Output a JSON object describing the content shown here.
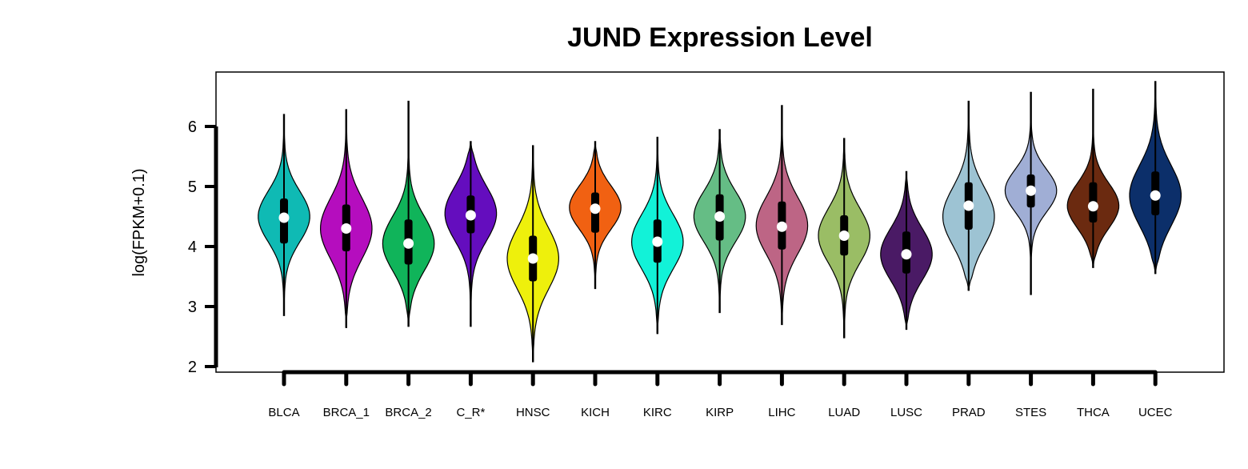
{
  "chart_data": {
    "type": "violin",
    "title": "JUND Expression Level",
    "xlabel": "",
    "ylabel": "log(FPKM+0.1)",
    "ylim": [
      2,
      6.8
    ],
    "yticks": [
      "2",
      "3",
      "4",
      "5",
      "6"
    ],
    "grid": false,
    "legend": "none",
    "categories": [
      "BLCA",
      "BRCA_1",
      "BRCA_2",
      "C_R*",
      "HNSC",
      "KICH",
      "KIRC",
      "KIRP",
      "LIHC",
      "LUAD",
      "LUSC",
      "PRAD",
      "STES",
      "THCA",
      "UCEC"
    ],
    "groups": [
      {
        "name": "BLCA",
        "color": "#0FBAB4",
        "min": 2.85,
        "max": 6.2,
        "q1": 4.05,
        "q3": 4.8,
        "median": 4.48,
        "mode": 4.5,
        "spread": 0.42
      },
      {
        "name": "BRCA_1",
        "color": "#B50DBE",
        "min": 2.65,
        "max": 6.28,
        "q1": 3.92,
        "q3": 4.7,
        "median": 4.3,
        "mode": 4.3,
        "spread": 0.5
      },
      {
        "name": "BRCA_2",
        "color": "#10B45A",
        "min": 2.67,
        "max": 6.42,
        "q1": 3.7,
        "q3": 4.45,
        "median": 4.05,
        "mode": 4.05,
        "spread": 0.45
      },
      {
        "name": "C_R*",
        "color": "#640DBE",
        "min": 2.67,
        "max": 5.75,
        "q1": 4.22,
        "q3": 4.85,
        "median": 4.52,
        "mode": 4.55,
        "spread": 0.45
      },
      {
        "name": "HNSC",
        "color": "#EEF00C",
        "min": 2.08,
        "max": 5.68,
        "q1": 3.42,
        "q3": 4.18,
        "median": 3.8,
        "mode": 3.8,
        "spread": 0.5
      },
      {
        "name": "KICH",
        "color": "#F16112",
        "min": 3.3,
        "max": 5.75,
        "q1": 4.23,
        "q3": 4.9,
        "median": 4.63,
        "mode": 4.65,
        "spread": 0.36
      },
      {
        "name": "KIRC",
        "color": "#12F2D8",
        "min": 2.55,
        "max": 5.82,
        "q1": 3.73,
        "q3": 4.45,
        "median": 4.08,
        "mode": 4.08,
        "spread": 0.45
      },
      {
        "name": "KIRP",
        "color": "#65BD85",
        "min": 2.9,
        "max": 5.95,
        "q1": 4.1,
        "q3": 4.87,
        "median": 4.5,
        "mode": 4.5,
        "spread": 0.42
      },
      {
        "name": "LIHC",
        "color": "#BD6585",
        "min": 2.7,
        "max": 6.35,
        "q1": 3.95,
        "q3": 4.75,
        "median": 4.33,
        "mode": 4.35,
        "spread": 0.47
      },
      {
        "name": "LUAD",
        "color": "#9ABD65",
        "min": 2.48,
        "max": 5.8,
        "q1": 3.85,
        "q3": 4.52,
        "median": 4.18,
        "mode": 4.18,
        "spread": 0.45
      },
      {
        "name": "LUSC",
        "color": "#4A1A65",
        "min": 2.62,
        "max": 5.25,
        "q1": 3.55,
        "q3": 4.25,
        "median": 3.87,
        "mode": 3.87,
        "spread": 0.43
      },
      {
        "name": "PRAD",
        "color": "#9DC3D3",
        "min": 3.27,
        "max": 6.42,
        "q1": 4.28,
        "q3": 5.07,
        "median": 4.68,
        "mode": 4.5,
        "spread": 0.48
      },
      {
        "name": "STES",
        "color": "#A0AED5",
        "min": 3.2,
        "max": 6.57,
        "q1": 4.65,
        "q3": 5.2,
        "median": 4.93,
        "mode": 4.93,
        "spread": 0.35
      },
      {
        "name": "THCA",
        "color": "#6B2A10",
        "min": 3.65,
        "max": 6.62,
        "q1": 4.4,
        "q3": 5.07,
        "median": 4.67,
        "mode": 4.68,
        "spread": 0.37
      },
      {
        "name": "UCEC",
        "color": "#0C2F6A",
        "min": 3.55,
        "max": 6.75,
        "q1": 4.52,
        "q3": 5.25,
        "median": 4.85,
        "mode": 4.85,
        "spread": 0.5
      }
    ]
  }
}
